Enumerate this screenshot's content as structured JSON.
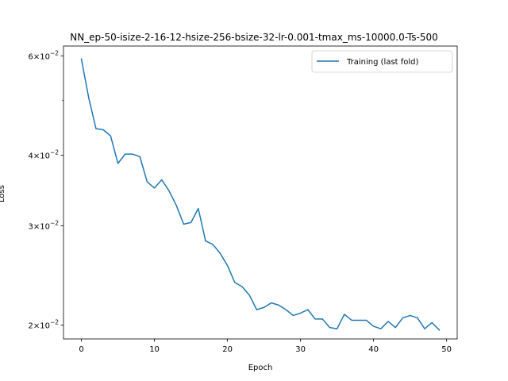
{
  "chart_data": {
    "type": "line",
    "title": "NN_ep-50-isize-2-16-12-hsize-256-bsize-32-lr-0.001-tmax_ms-10000.0-Ts-500",
    "xlabel": "Epoch",
    "ylabel": "Loss",
    "yscale": "log",
    "xlim": [
      -2.45,
      51.45
    ],
    "ylim": [
      0.0189,
      0.0625
    ],
    "x_ticks": [
      0,
      10,
      20,
      30,
      40,
      50
    ],
    "x_tick_labels": [
      "0",
      "10",
      "20",
      "30",
      "40",
      "50"
    ],
    "y_ticks_major": [
      0.02,
      0.03,
      0.04,
      0.06
    ],
    "y_tick_labels_major": [
      "2 × 10⁻²",
      "3 × 10⁻²",
      "4 × 10⁻²",
      "6 × 10⁻²"
    ],
    "y_ticks_minor": [
      0.05
    ],
    "grid": false,
    "legend_position": "top-right",
    "series": [
      {
        "name": "Training (last fold)",
        "color": "#1f77b4",
        "x": [
          0,
          1,
          2,
          3,
          4,
          5,
          6,
          7,
          8,
          9,
          10,
          11,
          12,
          13,
          14,
          15,
          16,
          17,
          18,
          19,
          20,
          21,
          22,
          23,
          24,
          25,
          26,
          27,
          28,
          29,
          30,
          31,
          32,
          33,
          34,
          35,
          36,
          37,
          38,
          39,
          40,
          41,
          42,
          43,
          44,
          45,
          46,
          47,
          48,
          49
        ],
        "y": [
          0.0593,
          0.0506,
          0.0446,
          0.0444,
          0.0433,
          0.0387,
          0.0402,
          0.0402,
          0.0398,
          0.0359,
          0.035,
          0.0362,
          0.0346,
          0.0326,
          0.0302,
          0.0304,
          0.0322,
          0.0282,
          0.0278,
          0.0268,
          0.0255,
          0.0238,
          0.0234,
          0.0226,
          0.0213,
          0.0215,
          0.0219,
          0.0217,
          0.0213,
          0.0208,
          0.021,
          0.0213,
          0.0205,
          0.0205,
          0.0198,
          0.0197,
          0.0209,
          0.0204,
          0.0204,
          0.0204,
          0.0199,
          0.0197,
          0.0203,
          0.0198,
          0.0206,
          0.0208,
          0.0206,
          0.0197,
          0.0202,
          0.0196
        ]
      }
    ]
  }
}
